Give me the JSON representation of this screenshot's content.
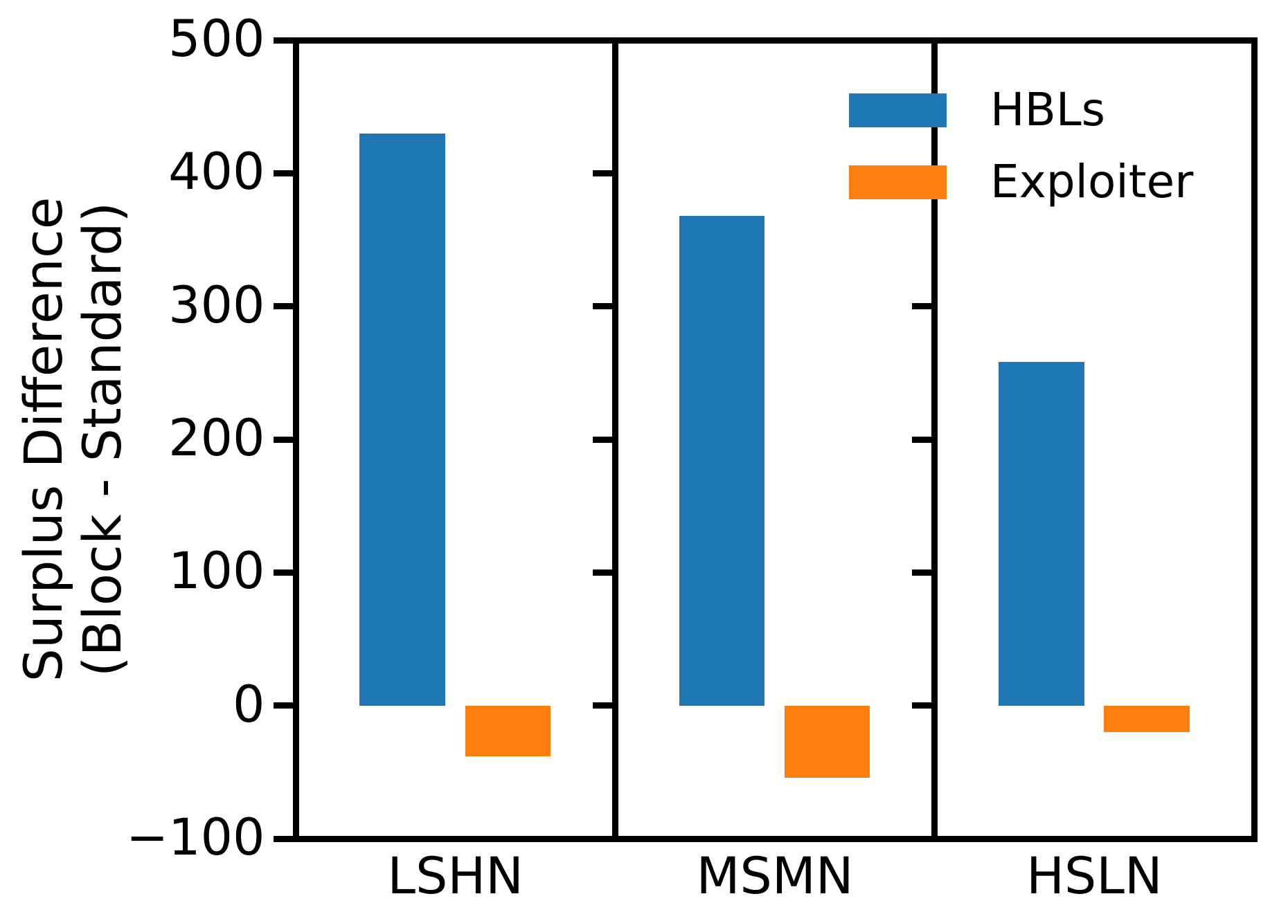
{
  "chart_data": {
    "type": "bar",
    "categories": [
      "LSHN",
      "MSMN",
      "HSLN"
    ],
    "series": [
      {
        "name": "HBLs",
        "color": "#1f77b4",
        "values": [
          430,
          368,
          258
        ]
      },
      {
        "name": "Exploiter",
        "color": "#ff7f0e",
        "values": [
          -38,
          -54,
          -20
        ]
      }
    ],
    "ylabel_line1": "Surplus Difference",
    "ylabel_line2": "(Block - Standard)",
    "ylim": [
      -100,
      500
    ],
    "yticks": [
      500,
      400,
      300,
      200,
      100,
      0,
      -100
    ],
    "ytick_labels": [
      "500",
      "400",
      "300",
      "200",
      "100",
      "0",
      "−100"
    ],
    "xlabel": "",
    "title": "",
    "grid": false,
    "legend": {
      "entries": [
        "HBLs",
        "Exploiter"
      ],
      "position": "upper right",
      "frame": false
    },
    "panels": 3,
    "colors": {
      "axes": "#000000",
      "background": "#ffffff"
    }
  }
}
